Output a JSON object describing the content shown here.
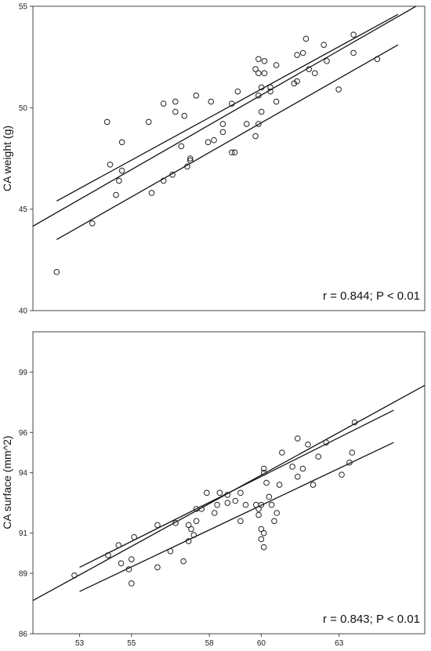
{
  "chart_data": [
    {
      "type": "scatter",
      "title": "",
      "xlabel": "",
      "ylabel": "CA weight (g)",
      "xlim": [
        52,
        65.2
      ],
      "ylim": [
        40,
        55
      ],
      "xticks": [],
      "xtick_labels": [],
      "yticks": [
        40,
        45,
        50,
        55
      ],
      "ytick_labels": [
        "40",
        "45",
        "50",
        "55"
      ],
      "grid": false,
      "annotation": "r = 0.844; P < 0.01",
      "fit": {
        "slope": 0.84,
        "intercept": 0.48
      },
      "band": {
        "upper": [
          [
            52.8,
            45.4
          ],
          [
            64.3,
            54.6
          ]
        ],
        "lower": [
          [
            52.8,
            43.5
          ],
          [
            64.3,
            53.1
          ]
        ]
      },
      "points": [
        [
          52.8,
          41.9
        ],
        [
          54.0,
          44.3
        ],
        [
          54.5,
          49.3
        ],
        [
          54.6,
          47.2
        ],
        [
          55.0,
          48.3
        ],
        [
          54.9,
          46.4
        ],
        [
          55.0,
          46.9
        ],
        [
          54.8,
          45.7
        ],
        [
          55.9,
          49.3
        ],
        [
          56.0,
          45.8
        ],
        [
          56.4,
          50.2
        ],
        [
          56.4,
          46.4
        ],
        [
          56.7,
          46.7
        ],
        [
          56.8,
          50.3
        ],
        [
          56.8,
          49.8
        ],
        [
          57.1,
          49.6
        ],
        [
          57.0,
          48.1
        ],
        [
          57.3,
          47.4
        ],
        [
          57.2,
          47.1
        ],
        [
          57.3,
          47.5
        ],
        [
          57.5,
          50.6
        ],
        [
          58.0,
          50.3
        ],
        [
          58.1,
          48.4
        ],
        [
          57.9,
          48.3
        ],
        [
          58.4,
          49.2
        ],
        [
          58.4,
          48.8
        ],
        [
          58.7,
          50.2
        ],
        [
          58.9,
          50.8
        ],
        [
          58.8,
          47.8
        ],
        [
          58.7,
          47.8
        ],
        [
          59.2,
          49.2
        ],
        [
          59.5,
          48.6
        ],
        [
          59.6,
          49.2
        ],
        [
          59.6,
          50.6
        ],
        [
          59.7,
          49.8
        ],
        [
          59.7,
          51.0
        ],
        [
          59.8,
          51.7
        ],
        [
          59.5,
          51.9
        ],
        [
          59.6,
          52.4
        ],
        [
          59.6,
          51.7
        ],
        [
          59.8,
          52.3
        ],
        [
          60.0,
          51.0
        ],
        [
          60.0,
          50.8
        ],
        [
          60.2,
          50.3
        ],
        [
          60.2,
          52.1
        ],
        [
          60.8,
          51.2
        ],
        [
          60.9,
          51.3
        ],
        [
          60.9,
          52.6
        ],
        [
          61.1,
          52.7
        ],
        [
          61.3,
          51.9
        ],
        [
          61.2,
          53.4
        ],
        [
          61.5,
          51.7
        ],
        [
          61.8,
          53.1
        ],
        [
          61.9,
          52.3
        ],
        [
          62.3,
          50.9
        ],
        [
          62.8,
          53.6
        ],
        [
          62.8,
          52.7
        ],
        [
          63.6,
          52.4
        ]
      ]
    },
    {
      "type": "scatter",
      "title": "",
      "xlabel": "",
      "ylabel": "CA surface (mm^2)",
      "xlim": [
        51.2,
        66.3
      ],
      "ylim": [
        86,
        101
      ],
      "xticks": [
        53,
        55,
        58,
        60,
        63
      ],
      "xtick_labels": [
        "53",
        "55",
        "58",
        "60",
        "63"
      ],
      "yticks": [
        86,
        89,
        91,
        94,
        96,
        99
      ],
      "ytick_labels": [
        "86",
        "89",
        "91",
        "94",
        "96",
        "99"
      ],
      "grid": false,
      "annotation": "r = 0.843; P < 0.01",
      "fit": {
        "slope": 0.708,
        "intercept": 51.4
      },
      "band": {
        "upper": [
          [
            53.0,
            89.3
          ],
          [
            65.1,
            97.1
          ]
        ],
        "lower": [
          [
            53.0,
            88.1
          ],
          [
            65.1,
            95.5
          ]
        ]
      },
      "points": [
        [
          52.8,
          88.9
        ],
        [
          54.1,
          89.9
        ],
        [
          54.5,
          90.4
        ],
        [
          54.6,
          89.5
        ],
        [
          55.0,
          88.5
        ],
        [
          54.9,
          89.2
        ],
        [
          55.0,
          89.7
        ],
        [
          55.1,
          90.8
        ],
        [
          56.0,
          91.4
        ],
        [
          56.0,
          89.3
        ],
        [
          56.5,
          90.1
        ],
        [
          56.7,
          91.5
        ],
        [
          57.0,
          89.6
        ],
        [
          57.2,
          90.6
        ],
        [
          57.2,
          91.4
        ],
        [
          57.5,
          92.2
        ],
        [
          57.4,
          90.9
        ],
        [
          57.3,
          91.2
        ],
        [
          57.5,
          91.6
        ],
        [
          57.7,
          92.2
        ],
        [
          57.9,
          93.0
        ],
        [
          58.2,
          92.0
        ],
        [
          58.4,
          93.0
        ],
        [
          58.3,
          92.4
        ],
        [
          58.7,
          92.5
        ],
        [
          58.7,
          92.9
        ],
        [
          59.0,
          92.6
        ],
        [
          59.2,
          91.6
        ],
        [
          59.2,
          93.0
        ],
        [
          59.4,
          92.4
        ],
        [
          59.8,
          92.4
        ],
        [
          59.9,
          92.2
        ],
        [
          59.9,
          91.9
        ],
        [
          60.0,
          92.4
        ],
        [
          60.0,
          91.2
        ],
        [
          60.0,
          90.7
        ],
        [
          60.1,
          90.3
        ],
        [
          60.1,
          91.0
        ],
        [
          60.1,
          94.0
        ],
        [
          60.1,
          94.2
        ],
        [
          60.2,
          93.5
        ],
        [
          60.3,
          92.8
        ],
        [
          60.4,
          92.4
        ],
        [
          60.5,
          91.6
        ],
        [
          60.6,
          92.0
        ],
        [
          60.7,
          93.4
        ],
        [
          60.8,
          95.0
        ],
        [
          61.2,
          94.3
        ],
        [
          61.4,
          93.8
        ],
        [
          61.4,
          95.7
        ],
        [
          61.6,
          94.2
        ],
        [
          61.8,
          95.4
        ],
        [
          62.0,
          93.4
        ],
        [
          62.2,
          94.8
        ],
        [
          62.5,
          95.5
        ],
        [
          63.1,
          93.9
        ],
        [
          63.4,
          94.5
        ],
        [
          63.5,
          95.0
        ],
        [
          63.6,
          96.5
        ]
      ]
    }
  ]
}
